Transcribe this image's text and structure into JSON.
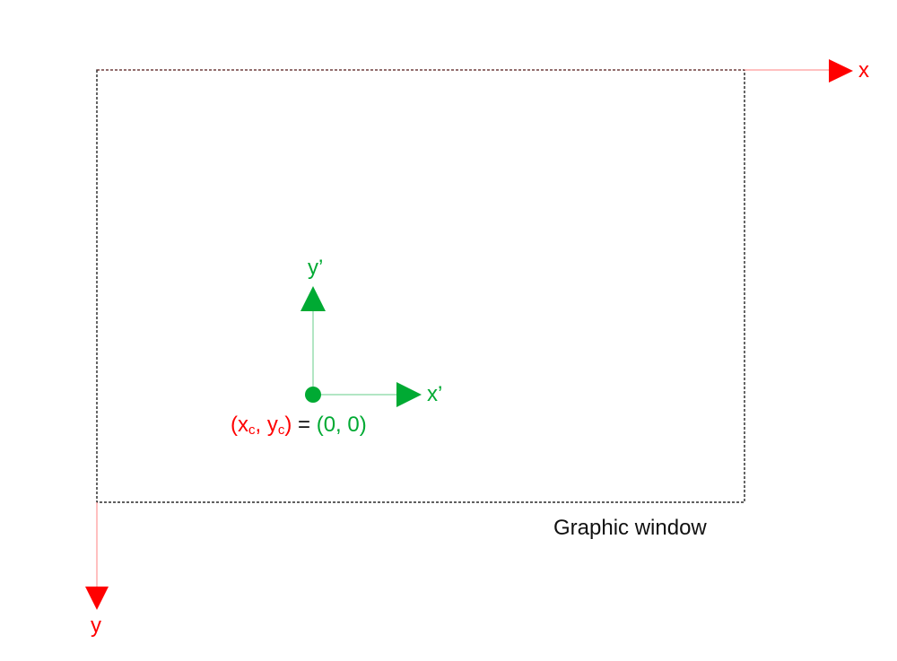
{
  "colors": {
    "world_axes": "#ff0000",
    "local_axes": "#00aa33",
    "window_border": "#000000",
    "text": "#111111"
  },
  "world_axes": {
    "x_label": "x",
    "y_label": "y"
  },
  "local_axes": {
    "x_label": "x’",
    "y_label": "y’"
  },
  "origin_label": {
    "open_paren": "(",
    "x_sym": "x",
    "x_sub": "c",
    "comma": ", ",
    "y_sym": "y",
    "y_sub": "c",
    "close_paren": ")",
    "equals": " = ",
    "value": "(0, 0)"
  },
  "window": {
    "caption": "Graphic window"
  }
}
